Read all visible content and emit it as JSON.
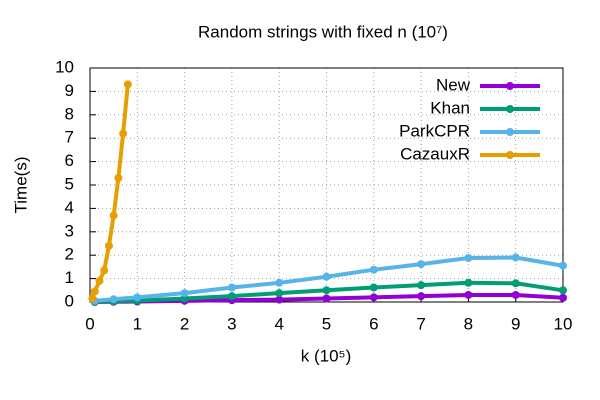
{
  "chart_data": {
    "type": "line",
    "title": "Random strings with fixed n (10⁷)",
    "x_label": "k (10⁵)",
    "y_label": "Time(s)",
    "xlim": [
      0,
      10
    ],
    "xticks": [
      0,
      1,
      2,
      3,
      4,
      5,
      6,
      7,
      8,
      9,
      10
    ],
    "ylim": [
      0,
      10
    ],
    "yticks": [
      0,
      1,
      2,
      3,
      4,
      5,
      6,
      7,
      8,
      9,
      10
    ],
    "grid": true,
    "legend": "top-right",
    "series": [
      {
        "name": "New",
        "color": "#9400d3",
        "x": [
          0.1,
          0.5,
          1,
          2,
          3,
          4,
          5,
          6,
          7,
          8,
          9,
          10
        ],
        "values": [
          0,
          0.01,
          0.02,
          0.05,
          0.08,
          0.1,
          0.15,
          0.2,
          0.25,
          0.3,
          0.3,
          0.18
        ]
      },
      {
        "name": "Khan",
        "color": "#009e73",
        "x": [
          0.1,
          0.5,
          1,
          2,
          3,
          4,
          5,
          6,
          7,
          8,
          9,
          10
        ],
        "values": [
          0.01,
          0.03,
          0.06,
          0.15,
          0.25,
          0.38,
          0.5,
          0.62,
          0.72,
          0.82,
          0.8,
          0.5
        ]
      },
      {
        "name": "ParkCPR",
        "color": "#56b4e9",
        "x": [
          0.1,
          0.5,
          1,
          2,
          3,
          4,
          5,
          6,
          7,
          8,
          9,
          10
        ],
        "values": [
          0.05,
          0.12,
          0.2,
          0.38,
          0.62,
          0.82,
          1.08,
          1.38,
          1.62,
          1.88,
          1.9,
          1.55
        ]
      },
      {
        "name": "CazauxR",
        "color": "#e69f00",
        "x": [
          0.05,
          0.1,
          0.2,
          0.3,
          0.4,
          0.5,
          0.6,
          0.7,
          0.8
        ],
        "values": [
          0.15,
          0.45,
          0.9,
          1.35,
          2.4,
          3.7,
          5.3,
          7.2,
          9.3
        ]
      }
    ]
  }
}
